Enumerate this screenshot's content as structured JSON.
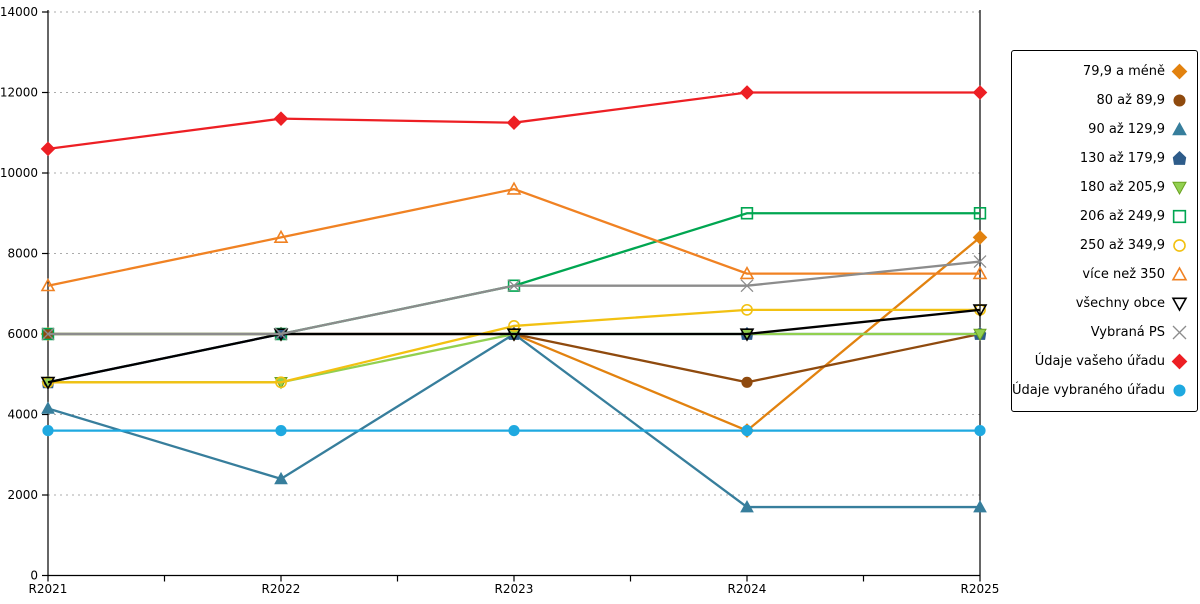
{
  "chart_data": {
    "type": "line",
    "title": "",
    "xlabel": "",
    "ylabel": "",
    "x_categories": [
      "R2021",
      "R2022",
      "R2023",
      "R2024",
      "R2025"
    ],
    "ylim": [
      0,
      14000
    ],
    "y_ticks": [
      0,
      2000,
      4000,
      6000,
      8000,
      10000,
      12000,
      14000
    ],
    "grid": "horizontal-dashed",
    "grid_color": "#ABABAB",
    "axis_color": "#000000",
    "legend_position": "right-box",
    "series": [
      {
        "name": "79,9 a méně",
        "marker": "diamond",
        "marker_fill": "filled",
        "color": "#E2820F",
        "values": [
          6000,
          6000,
          6000,
          3600,
          8400
        ]
      },
      {
        "name": "80 až 89,9",
        "marker": "circle",
        "marker_fill": "filled",
        "color": "#8F4A0E",
        "values": [
          6000,
          6000,
          6000,
          4800,
          6000
        ]
      },
      {
        "name": "90 až 129,9",
        "marker": "triangle-up",
        "marker_fill": "filled",
        "color": "#377E9C",
        "values": [
          4150,
          2400,
          6000,
          1700,
          1700
        ]
      },
      {
        "name": "130 až 179,9",
        "marker": "pentagon",
        "marker_fill": "filled",
        "color": "#2E5C8A",
        "values": [
          4800,
          6000,
          6000,
          6000,
          6000
        ]
      },
      {
        "name": "180 až 205,9",
        "marker": "triangle-down",
        "marker_fill": "filled",
        "color": "#92D050",
        "stroke": "#6AA121",
        "values": [
          4800,
          4800,
          6000,
          6000,
          6000
        ]
      },
      {
        "name": "206 až 249,9",
        "marker": "square",
        "marker_fill": "open",
        "color": "#00A651",
        "values": [
          6000,
          6000,
          7200,
          9000,
          9000
        ]
      },
      {
        "name": "250 až 349,9",
        "marker": "circle",
        "marker_fill": "open",
        "color": "#F2C112",
        "values": [
          4800,
          4800,
          6200,
          6600,
          6600
        ]
      },
      {
        "name": "více než 350",
        "marker": "triangle-up",
        "marker_fill": "open",
        "color": "#F08223",
        "values": [
          7200,
          8400,
          9600,
          7500,
          7500
        ]
      },
      {
        "name": "všechny obce",
        "marker": "triangle-down",
        "marker_fill": "open",
        "color": "#000000",
        "values": [
          4800,
          6000,
          6000,
          6000,
          6600
        ]
      },
      {
        "name": "Vybraná PS",
        "marker": "x",
        "marker_fill": "open",
        "color": "#8C8C8C",
        "values": [
          6000,
          6000,
          7200,
          7200,
          7800
        ]
      },
      {
        "name": "Údaje vašeho úřadu",
        "marker": "diamond",
        "marker_fill": "filled",
        "color": "#ED1F24",
        "values": [
          10600,
          11350,
          11250,
          12000,
          12000
        ]
      },
      {
        "name": "Údaje vybraného úřadu",
        "marker": "circle",
        "marker_fill": "filled",
        "color": "#1FA9E0",
        "values": [
          3600,
          3600,
          3600,
          3600,
          3600
        ]
      }
    ]
  }
}
